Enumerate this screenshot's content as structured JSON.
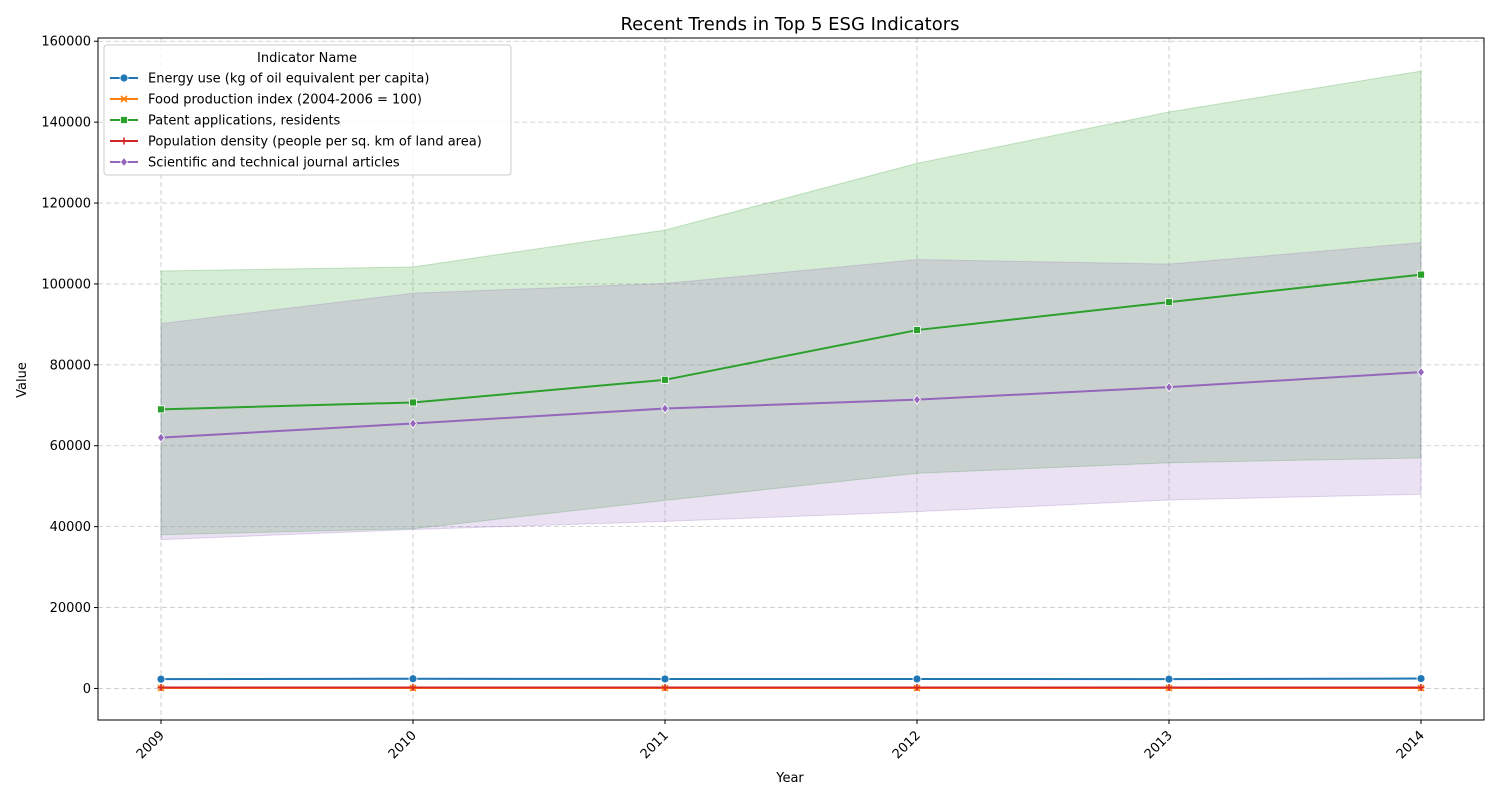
{
  "chart_data": {
    "type": "line",
    "title": "Recent Trends in Top 5 ESG Indicators",
    "xlabel": "Year",
    "ylabel": "Value",
    "x": [
      2009,
      2010,
      2011,
      2012,
      2013,
      2014
    ],
    "x_tick_labels": [
      "2009",
      "2010",
      "2011",
      "2012",
      "2013",
      "2014"
    ],
    "xlim": [
      2008.75,
      2014.25
    ],
    "ylim": [
      -7800,
      160800
    ],
    "y_ticks": [
      0,
      20000,
      40000,
      60000,
      80000,
      100000,
      120000,
      140000,
      160000
    ],
    "y_tick_labels": [
      "0",
      "20000",
      "40000",
      "60000",
      "80000",
      "100000",
      "120000",
      "140000",
      "160000"
    ],
    "grid": true,
    "legend": {
      "title": "Indicator Name",
      "position": "top-left"
    },
    "series": [
      {
        "name": "Energy use (kg of oil equivalent per capita)",
        "color": "#1f77b4",
        "marker": "circle",
        "values": [
          2300,
          2400,
          2350,
          2350,
          2300,
          2450
        ],
        "band_lower": [
          2200,
          2300,
          2250,
          2250,
          2200,
          2350
        ],
        "band_upper": [
          2400,
          2500,
          2450,
          2450,
          2400,
          2550
        ]
      },
      {
        "name": "Food production index (2004-2006 = 100)",
        "color": "#ff7f0e",
        "marker": "x",
        "values": [
          100,
          102,
          104,
          106,
          107,
          109
        ],
        "band_lower": [
          95,
          97,
          99,
          101,
          102,
          104
        ],
        "band_upper": [
          105,
          107,
          109,
          111,
          112,
          114
        ]
      },
      {
        "name": "Patent applications, residents",
        "color": "#2ca02c",
        "marker": "square",
        "values": [
          69000,
          70700,
          76300,
          88600,
          95500,
          102300
        ],
        "band_lower": [
          38000,
          39500,
          46500,
          53200,
          55800,
          57000
        ],
        "band_upper": [
          103200,
          104200,
          113300,
          129800,
          142500,
          152600
        ]
      },
      {
        "name": "Population density (people per sq. km of land area)",
        "color": "#d62728",
        "marker": "plus",
        "values": [
          220,
          222,
          224,
          226,
          228,
          230
        ],
        "band_lower": [
          200,
          202,
          204,
          206,
          208,
          210
        ],
        "band_upper": [
          240,
          242,
          244,
          246,
          248,
          250
        ]
      },
      {
        "name": "Scientific and technical journal articles",
        "color": "#9467bd",
        "marker": "diamond",
        "values": [
          62000,
          65500,
          69200,
          71400,
          74500,
          78200
        ],
        "band_lower": [
          36800,
          39300,
          41300,
          43700,
          46600,
          48000
        ],
        "band_upper": [
          90200,
          97700,
          100100,
          106000,
          104900,
          110200
        ]
      }
    ]
  }
}
